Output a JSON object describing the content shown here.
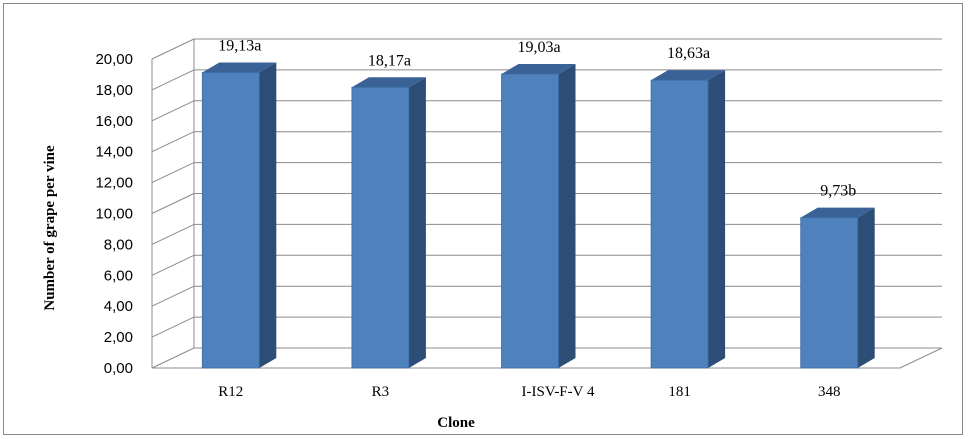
{
  "chart_data": {
    "type": "bar",
    "style": "3d-clustered-column",
    "categories": [
      "R12",
      "R3",
      "I-ISV-F-V 4",
      "181",
      "348"
    ],
    "values": [
      19.13,
      18.17,
      19.03,
      18.63,
      9.73
    ],
    "data_labels": [
      "19,13a",
      "18,17a",
      "19,03a",
      "18,63a",
      "9,73b"
    ],
    "title": "",
    "xlabel": "Clone",
    "ylabel": "Number of grape per vine",
    "ylim": [
      0,
      20
    ],
    "yticks": [
      "0,00",
      "2,00",
      "4,00",
      "6,00",
      "8,00",
      "10,00",
      "12,00",
      "14,00",
      "16,00",
      "18,00",
      "20,00"
    ],
    "grid": true,
    "legend": "none",
    "colors": {
      "bar_front": "#4f81bd",
      "bar_side": "#2c4d75",
      "bar_top": "#3a6296",
      "grid": "#8c8c8c"
    }
  }
}
